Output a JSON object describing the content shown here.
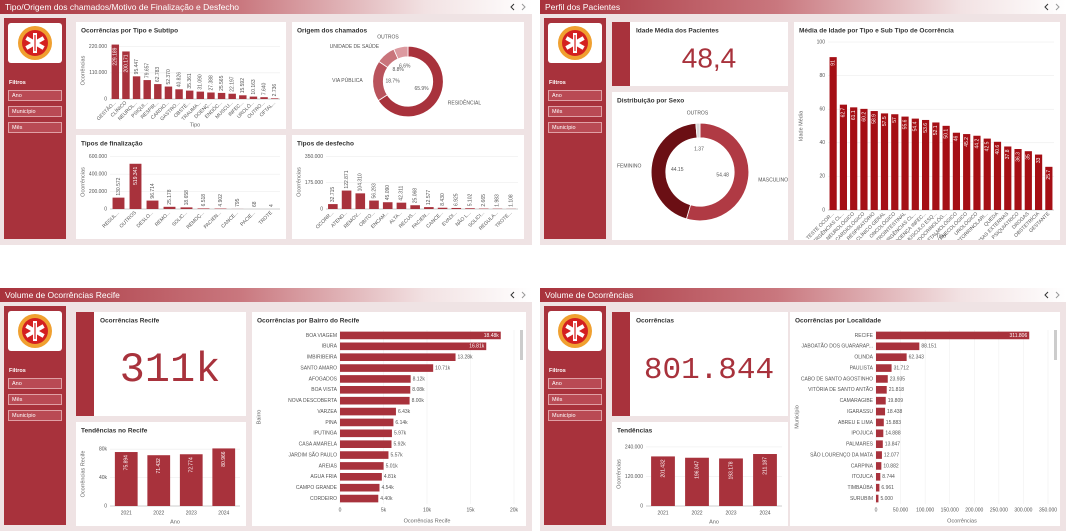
{
  "panels": [
    {
      "title": "Tipo/Origem dos chamados/Motivo de Finalização e Desfecho",
      "filters_title": "Filtros",
      "filters": [
        "Ano",
        "Município",
        "Mês"
      ],
      "charts": [
        {
          "type": "bar",
          "title": "Ocorrências por Tipo e Subtipo",
          "y_label": "Ocorrências",
          "x_label": "Tipo",
          "color": "#a8323c",
          "categories": [
            "GESTÃO...",
            "CLÍNICO",
            "NEUROL...",
            "PSIQUI...",
            "RESPIR...",
            "CARDIO...",
            "GASTRO...",
            "OBSTÉ...",
            "TRAUMA...",
            "DOENÇ...",
            "ENDÓC...",
            "MUSCU...",
            "INFEC...",
            "UROLÓ...",
            "OUTRO...",
            "OFTAL..."
          ],
          "values": [
            229189,
            200171,
            95447,
            79657,
            62783,
            52370,
            40826,
            35361,
            31090,
            27388,
            25565,
            22197,
            15592,
            10163,
            7640,
            2736
          ],
          "value_labels": [
            "229.189",
            "200.171",
            "95.447",
            "79.657",
            "62.783",
            "52.370",
            "40.826",
            "35.361",
            "31.090",
            "27.388",
            "25.565",
            "22.197",
            "15.592",
            "10.163",
            "7.640",
            "2.736"
          ],
          "ylim": [
            0,
            240000
          ],
          "yticks": [
            0,
            {
              "value": 110000,
              "label": "110.000"
            },
            {
              "value": 220000,
              "label": "220.000"
            }
          ]
        },
        {
          "type": "donut",
          "title": "Origem dos chamados",
          "categories": [
            "RESIDÊNCIAL",
            "VIA PÚBLICA",
            "UNIDADE DE SAÚDE",
            "OUTROS"
          ],
          "values": [
            65.9,
            18.7,
            8.8,
            6.6
          ],
          "value_labels": [
            "65.9%",
            "18.7%",
            "8.8%",
            "6.6%"
          ],
          "colors": [
            "#a8323c",
            "#b9535c",
            "#c9747b",
            "#dc9aa0"
          ]
        },
        {
          "type": "bar",
          "title": "Tipos de finalização",
          "y_label": "Ocorrências",
          "color": "#a8323c",
          "categories": [
            "REGUL...",
            "OUTROS",
            "DESLO...",
            "REMO...",
            "SOLIC...",
            "REMOÇ...",
            "PACIEN...",
            "CANCE...",
            "PACIE...",
            "TROTE"
          ],
          "values": [
            130572,
            519341,
            96714,
            25178,
            18658,
            6518,
            4902,
            795,
            68,
            4
          ],
          "value_labels": [
            "130.572",
            "519.341",
            "96.714",
            "25.178",
            "18.658",
            "6.518",
            "4.902",
            "795",
            "68",
            "4"
          ],
          "ylim": [
            0,
            620000
          ],
          "yticks": [
            0,
            {
              "value": 200000,
              "label": "200.000"
            },
            {
              "value": 400000,
              "label": "400.000"
            },
            {
              "value": 600000,
              "label": "600.000"
            }
          ]
        },
        {
          "type": "bar",
          "title": "Tipos de desfecho",
          "y_label": "Ocorrências",
          "color": "#a8323c",
          "categories": [
            "OCORR...",
            "ATEND...",
            "REMOV...",
            "OBITO...",
            "ENCAM...",
            "ALTA...",
            "RECUS...",
            "PACIEN...",
            "CANCE...",
            "EVADI...",
            "NÃO L...",
            "SOLICI...",
            "REGULA...",
            "TROTE..."
          ],
          "values": [
            32715,
            122871,
            104310,
            56293,
            45090,
            42311,
            25068,
            12577,
            8430,
            6925,
            5102,
            2665,
            1983,
            1108
          ],
          "value_labels": [
            "32.715",
            "122.871",
            "104.310",
            "56.293",
            "45.090",
            "42.311",
            "25.068",
            "12.577",
            "8.430",
            "6.925",
            "5.102",
            "2.665",
            "1.983",
            "1.108"
          ],
          "ylim": [
            0,
            360000
          ],
          "yticks": [
            0,
            {
              "value": 175000,
              "label": "175.000"
            },
            {
              "value": 350000,
              "label": "350.000"
            }
          ]
        }
      ]
    },
    {
      "title": "Perfil dos Pacientes",
      "filters_title": "Filtros",
      "filters": [
        "Ano",
        "Mês",
        "Município"
      ],
      "charts": [
        {
          "type": "kpi",
          "title": "Idade Média dos Pacientes",
          "value": "48,4"
        },
        {
          "type": "donut",
          "title": "Distribuição por Sexo",
          "categories": [
            "MASCULINO",
            "FEMININO",
            "OUTROS"
          ],
          "values": [
            54.48,
            44.15,
            1.37
          ],
          "colors": [
            "#b03a44",
            "#6b0f14",
            "#d8d8d8"
          ]
        },
        {
          "type": "bar",
          "title": "Média de Idade por Tipo e Sub Tipo de Ocorrência",
          "y_label": "Idade Média",
          "x_label": "Tipo",
          "color": "#a50f15",
          "categories": [
            "TESTE OCOR...",
            "EMERGÊNCIAS CL...",
            "NEUROLÓGICO",
            "CARDIOLÓGICO",
            "RESPIRATÓRIO",
            "CLÍNICO GERAL",
            "ONCOLÓGICO",
            "GASTROINTESTINAL",
            "URGÊNCIAS CL...",
            "DOENÇA INFEC...",
            "MÚSCULO ESQ...",
            "ENDOCRINOLÓG...",
            "OFTALMOLÓGICO",
            "GINECOLÓGICO",
            "UROLÓGICO",
            "OTORRINOLARI...",
            "QUEDA",
            "CAUSAS EXTERNAS",
            "PSIQUIÁTRICO",
            "DROGAS",
            "OBSTETRÍCIA",
            "GESTANTE"
          ],
          "values": [
            91,
            62.7,
            61.1,
            60.2,
            58.9,
            57.5,
            57,
            55.6,
            54.4,
            53.6,
            52.1,
            50.1,
            46,
            45.2,
            44.2,
            42.5,
            40.6,
            37.8,
            36.3,
            35,
            33,
            25.7
          ],
          "ylim": [
            0,
            100
          ],
          "yticks": [
            0,
            20,
            40,
            60,
            80,
            100
          ]
        }
      ]
    },
    {
      "title": "Volume de Ocorrências Recife",
      "filters_title": "Filtros",
      "filters": [
        "Ano",
        "Mês",
        "Município"
      ],
      "charts": [
        {
          "type": "kpi",
          "title": "Ocorrências Recife",
          "value": "311k"
        },
        {
          "type": "bar",
          "title": "Tendências no Recife",
          "y_label": "Ocorrências Recife",
          "x_label": "Ano",
          "color": "#a8323c",
          "categories": [
            "2021",
            "2022",
            "2023",
            "2024"
          ],
          "values": [
            75894,
            71432,
            72774,
            80966
          ],
          "value_labels": [
            "75.894",
            "71.432",
            "72.774",
            "80.966"
          ],
          "ylim": [
            0,
            90000
          ],
          "yticks": [
            0,
            {
              "value": 40000,
              "label": "40k"
            },
            {
              "value": 80000,
              "label": "80k"
            }
          ]
        },
        {
          "type": "hbar",
          "title": "Ocorrências por Bairro do Recife",
          "y_label": "Bairro",
          "x_label": "Ocorrências Recife",
          "color": "#a8323c",
          "categories": [
            "BOA VIAGEM",
            "IBURA",
            "IMBIRIBEIRA",
            "SANTO AMARO",
            "AFOGADOS",
            "BOA VISTA",
            "NOVA DESCOBERTA",
            "VARZEA",
            "PINA",
            "IPUTINGA",
            "CASA AMARELA",
            "JARDIM SÃO PAULO",
            "AREIAS",
            "AGUA FRIA",
            "CAMPO GRANDE",
            "CORDEIRO"
          ],
          "values": [
            18480,
            16810,
            13280,
            10710,
            8120,
            8080,
            8000,
            6430,
            6140,
            5970,
            5920,
            5570,
            5010,
            4810,
            4540,
            4400
          ],
          "value_labels": [
            "18.48k",
            "16.81k",
            "13.28k",
            "10.71k",
            "8.12k",
            "8.08k",
            "8.00k",
            "6.43k",
            "6.14k",
            "5.97k",
            "5.92k",
            "5.57k",
            "5.01k",
            "4.81k",
            "4.54k",
            "4.40k"
          ],
          "xlim": [
            0,
            20000
          ],
          "xticks": [
            0,
            {
              "value": 5000,
              "label": "5k"
            },
            {
              "value": 10000,
              "label": "10k"
            },
            {
              "value": 15000,
              "label": "15k"
            },
            {
              "value": 20000,
              "label": "20k"
            }
          ]
        }
      ]
    },
    {
      "title": "Volume de Ocorrências",
      "filters_title": "Filtros",
      "filters": [
        "Ano",
        "Mês",
        "Município"
      ],
      "charts": [
        {
          "type": "kpi",
          "title": "Ocorrências",
          "value": "801.844"
        },
        {
          "type": "bar",
          "title": "Tendências",
          "y_label": "Ocorrências",
          "x_label": "Ano",
          "color": "#a8323c",
          "categories": [
            "2021",
            "2022",
            "2023",
            "2024"
          ],
          "values": [
            201432,
            196047,
            193178,
            211187
          ],
          "value_labels": [
            "201.432",
            "196.047",
            "193.178",
            "211.187"
          ],
          "ylim": [
            0,
            260000
          ],
          "yticks": [
            0,
            {
              "value": 120000,
              "label": "120.000"
            },
            {
              "value": 240000,
              "label": "240.000"
            }
          ]
        },
        {
          "type": "hbar",
          "title": "Ocorrências por Localidade",
          "y_label": "Município",
          "x_label": "Ocorrências",
          "color": "#a8323c",
          "categories": [
            "RECIFE",
            "JABOATÃO DOS GUARARAP...",
            "OLINDA",
            "PAULISTA",
            "CABO DE SANTO AGOSTINHO",
            "VITÓRIA DE SANTO ANTÃO",
            "CAMARAGIBE",
            "IGARASSU",
            "ABREU E LIMA",
            "IPOJUCA",
            "PALMARES",
            "SÃO LOURENÇO DA MATA",
            "CARPINA",
            "ITOJUCA",
            "TIMBAÚBA",
            "SURUBIM"
          ],
          "values": [
            311806,
            88151,
            62343,
            31712,
            23935,
            21818,
            19809,
            18438,
            15883,
            14888,
            13847,
            12077,
            10882,
            8744,
            6961,
            5000
          ],
          "value_labels": [
            "311.806",
            "88.151",
            "62.343",
            "31.712",
            "23.935",
            "21.818",
            "19.809",
            "18.438",
            "15.883",
            "14.888",
            "13.847",
            "12.077",
            "10.882",
            "8.744",
            "6.961",
            "5.000"
          ],
          "xlim": [
            0,
            350000
          ],
          "xticks": [
            0,
            {
              "value": 50000,
              "label": "50.000"
            },
            {
              "value": 100000,
              "label": "100.000"
            },
            {
              "value": 150000,
              "label": "150.000"
            },
            {
              "value": 200000,
              "label": "200.000"
            },
            {
              "value": 250000,
              "label": "250.000"
            },
            {
              "value": 300000,
              "label": "300.000"
            },
            {
              "value": 350000,
              "label": "350.000"
            }
          ]
        }
      ]
    }
  ]
}
